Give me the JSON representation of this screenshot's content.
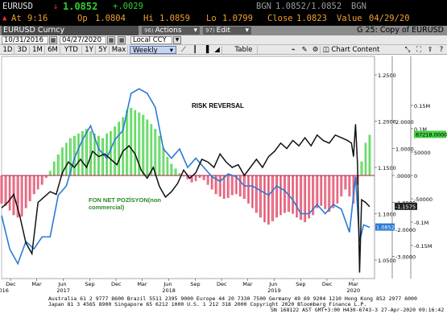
{
  "quote": {
    "ticker": "EURUSD",
    "last": "1.0852",
    "change": "+.0029",
    "bgn_label": "BGN",
    "bid_ask": "1.0852/1.0852",
    "bgn_label2": "BGN",
    "at_label": "At",
    "time": "9:16",
    "op_label": "Op",
    "open": "1.0804",
    "hi_label": "Hi",
    "high": "1.0859",
    "lo_label": "Lo",
    "low": "1.0799",
    "close_label": "Close",
    "close": "1.0823",
    "value_label": "Value",
    "value_date": "04/29/20"
  },
  "titlebar": {
    "security": "EURUSD Curncy",
    "actions_num": "96)",
    "actions": "Actions",
    "edit_num": "97)",
    "edit": "Edit",
    "chart_title": "G 25: Copy of EURUSD"
  },
  "daterow": {
    "start_date": "10/31/2016",
    "end_date": "04/27/2020",
    "currency": "Local CCY"
  },
  "toolbar": {
    "periods": [
      "1D",
      "3D",
      "1M",
      "6M",
      "YTD",
      "1Y",
      "5Y",
      "Max"
    ],
    "frequency": "Weekly",
    "table": "Table",
    "chart_content": "Chart Content"
  },
  "chart_data": {
    "type": "line",
    "annotations": {
      "risk_reversal": "RISK REVERSAL",
      "fon_net_line1": "FON NET POZİSYON(non",
      "fon_net_line2": "commercial)"
    },
    "x_ticks": [
      "Dec",
      "Mar",
      "Jun",
      "Sep",
      "Dec",
      "Mar",
      "Jun",
      "Sep",
      "Dec",
      "Mar",
      "Jun",
      "Sep",
      "Dec",
      "Mar"
    ],
    "x_years": [
      "2016",
      "2017",
      "2018",
      "2019",
      "2020"
    ],
    "left_axis": {
      "ticks": [
        "1.2500",
        "1.2000",
        "1.1500",
        "1.1000",
        "1.0500"
      ],
      "ylim": [
        1.03,
        1.27
      ]
    },
    "right_outer_axis": {
      "ticks": [
        "0.15M",
        "0.1M",
        "50000",
        "0",
        "-50000",
        "-0.1M",
        "-0.15M"
      ]
    },
    "right_inner_axis": {
      "ticks": [
        "2.0000",
        "1.0000",
        ".0000",
        "-1.0000",
        "-2.0000",
        "-3.0000"
      ]
    },
    "labels": {
      "eurusd_last": "1.0852",
      "risk_rev_last": "-1.1575",
      "netpos_last": "87218.0000"
    },
    "series": [
      {
        "name": "EURUSD",
        "color": "#2a7ad4",
        "x": [
          "2016-10-31",
          "2016-11-28",
          "2016-12-26",
          "2017-01-23",
          "2017-02-20",
          "2017-03-20",
          "2017-04-17",
          "2017-05-15",
          "2017-06-12",
          "2017-07-10",
          "2017-08-07",
          "2017-09-04",
          "2017-10-02",
          "2017-10-30",
          "2017-11-27",
          "2017-12-25",
          "2018-01-22",
          "2018-02-19",
          "2018-03-19",
          "2018-04-16",
          "2018-05-14",
          "2018-06-11",
          "2018-07-09",
          "2018-08-06",
          "2018-09-03",
          "2018-10-01",
          "2018-10-29",
          "2018-11-26",
          "2018-12-24",
          "2019-01-21",
          "2019-02-18",
          "2019-03-18",
          "2019-04-15",
          "2019-05-13",
          "2019-06-10",
          "2019-07-08",
          "2019-08-05",
          "2019-09-02",
          "2019-09-30",
          "2019-10-28",
          "2019-11-25",
          "2019-12-23",
          "2020-01-20",
          "2020-02-17",
          "2020-03-09",
          "2020-03-23",
          "2020-04-06",
          "2020-04-27"
        ],
        "y": [
          1.098,
          1.062,
          1.046,
          1.07,
          1.062,
          1.075,
          1.075,
          1.12,
          1.13,
          1.16,
          1.18,
          1.195,
          1.17,
          1.16,
          1.18,
          1.19,
          1.23,
          1.235,
          1.23,
          1.215,
          1.17,
          1.16,
          1.17,
          1.15,
          1.16,
          1.15,
          1.14,
          1.135,
          1.143,
          1.14,
          1.13,
          1.13,
          1.125,
          1.12,
          1.13,
          1.125,
          1.115,
          1.1,
          1.1,
          1.11,
          1.1,
          1.11,
          1.105,
          1.08,
          1.14,
          1.07,
          1.088,
          1.0852
        ]
      },
      {
        "name": "RISK REVERSAL",
        "color": "#111111",
        "x": [
          "2016-10-31",
          "2016-11-21",
          "2016-12-12",
          "2017-01-02",
          "2017-01-23",
          "2017-02-13",
          "2017-03-06",
          "2017-03-27",
          "2017-04-17",
          "2017-05-08",
          "2017-05-29",
          "2017-06-19",
          "2017-07-10",
          "2017-07-31",
          "2017-08-21",
          "2017-09-11",
          "2017-10-02",
          "2017-10-23",
          "2017-11-13",
          "2017-12-04",
          "2017-12-25",
          "2018-01-15",
          "2018-02-05",
          "2018-02-26",
          "2018-03-19",
          "2018-04-09",
          "2018-04-30",
          "2018-05-21",
          "2018-06-11",
          "2018-07-02",
          "2018-07-23",
          "2018-08-13",
          "2018-09-03",
          "2018-09-24",
          "2018-10-15",
          "2018-11-05",
          "2018-11-26",
          "2018-12-17",
          "2019-01-07",
          "2019-01-28",
          "2019-02-18",
          "2019-03-11",
          "2019-04-01",
          "2019-04-22",
          "2019-05-13",
          "2019-06-03",
          "2019-06-24",
          "2019-07-15",
          "2019-08-05",
          "2019-08-26",
          "2019-09-16",
          "2019-10-07",
          "2019-10-28",
          "2019-11-18",
          "2019-12-09",
          "2019-12-30",
          "2020-01-20",
          "2020-02-10",
          "2020-02-24",
          "2020-03-02",
          "2020-03-09",
          "2020-03-16",
          "2020-03-23",
          "2020-03-30",
          "2020-04-13",
          "2020-04-27"
        ],
        "y": [
          -1.2,
          -1.0,
          -0.7,
          -1.5,
          -2.5,
          -2.9,
          -1.0,
          -0.8,
          -0.6,
          -0.7,
          0.1,
          0.5,
          0.3,
          0.6,
          0.3,
          0.9,
          0.7,
          0.8,
          0.6,
          0.4,
          0.9,
          1.1,
          0.8,
          0.2,
          -0.1,
          0.3,
          -0.4,
          -0.8,
          -0.6,
          -0.3,
          0.2,
          -0.1,
          0.1,
          0.6,
          0.5,
          0.3,
          0.8,
          0.5,
          0.3,
          0.4,
          0.0,
          0.3,
          0.6,
          0.3,
          0.7,
          0.9,
          1.2,
          1.0,
          1.3,
          1.1,
          1.4,
          1.1,
          1.5,
          1.3,
          1.2,
          1.5,
          1.4,
          1.3,
          1.2,
          0.7,
          1.9,
          0.4,
          -3.6,
          -0.9,
          -1.0,
          -1.1575
        ]
      },
      {
        "name": "FON NET POZİSYON(non commercial)",
        "style": "bars",
        "color_pos": "#44d044",
        "color_neg": "#e04060",
        "x": [
          "2016-10-31",
          "2016-11-14",
          "2016-11-28",
          "2016-12-12",
          "2016-12-26",
          "2017-01-09",
          "2017-01-23",
          "2017-02-06",
          "2017-02-20",
          "2017-03-06",
          "2017-03-20",
          "2017-04-03",
          "2017-04-17",
          "2017-05-01",
          "2017-05-15",
          "2017-05-29",
          "2017-06-12",
          "2017-06-26",
          "2017-07-10",
          "2017-07-24",
          "2017-08-07",
          "2017-08-21",
          "2017-09-04",
          "2017-09-18",
          "2017-10-02",
          "2017-10-16",
          "2017-10-30",
          "2017-11-13",
          "2017-11-27",
          "2017-12-11",
          "2017-12-25",
          "2018-01-08",
          "2018-01-22",
          "2018-02-05",
          "2018-02-19",
          "2018-03-05",
          "2018-03-19",
          "2018-04-02",
          "2018-04-16",
          "2018-04-30",
          "2018-05-14",
          "2018-05-28",
          "2018-06-11",
          "2018-06-25",
          "2018-07-09",
          "2018-07-23",
          "2018-08-06",
          "2018-08-20",
          "2018-09-03",
          "2018-09-17",
          "2018-10-01",
          "2018-10-15",
          "2018-10-29",
          "2018-11-12",
          "2018-11-26",
          "2018-12-10",
          "2018-12-24",
          "2019-01-07",
          "2019-01-21",
          "2019-02-04",
          "2019-02-18",
          "2019-03-04",
          "2019-03-18",
          "2019-04-01",
          "2019-04-15",
          "2019-04-29",
          "2019-05-13",
          "2019-05-27",
          "2019-06-10",
          "2019-06-24",
          "2019-07-08",
          "2019-07-22",
          "2019-08-05",
          "2019-08-19",
          "2019-09-02",
          "2019-09-16",
          "2019-09-30",
          "2019-10-14",
          "2019-10-28",
          "2019-11-11",
          "2019-11-25",
          "2019-12-09",
          "2019-12-23",
          "2020-01-06",
          "2020-01-20",
          "2020-02-03",
          "2020-02-17",
          "2020-03-02",
          "2020-03-16",
          "2020-03-30",
          "2020-04-13",
          "2020-04-27"
        ],
        "y": [
          -60000,
          -65000,
          -75000,
          -85000,
          -90000,
          -88000,
          -70000,
          -55000,
          -40000,
          -30000,
          -20000,
          -5000,
          10000,
          30000,
          45000,
          60000,
          70000,
          80000,
          85000,
          90000,
          95000,
          100000,
          95000,
          90000,
          85000,
          80000,
          90000,
          95000,
          105000,
          115000,
          125000,
          140000,
          145000,
          140000,
          135000,
          130000,
          120000,
          110000,
          100000,
          85000,
          60000,
          40000,
          25000,
          15000,
          5000,
          -2000,
          -8000,
          -15000,
          -12000,
          -5000,
          -10000,
          -20000,
          -30000,
          -40000,
          -45000,
          -50000,
          -48000,
          -42000,
          -40000,
          -45000,
          -50000,
          -60000,
          -70000,
          -80000,
          -90000,
          -100000,
          -105000,
          -98000,
          -90000,
          -85000,
          -80000,
          -78000,
          -82000,
          -90000,
          -95000,
          -100000,
          -92000,
          -85000,
          -70000,
          -65000,
          -72000,
          -78000,
          -70000,
          -60000,
          -45000,
          -30000,
          -45000,
          -60000,
          -20000,
          30000,
          70000,
          87218
        ]
      }
    ]
  },
  "footer": {
    "line1": "Australia 61 2 9777 8600 Brazil 5511 2395 9000 Europe 44 20 7330 7500 Germany 49 69 9204 1210 Hong Kong 852 2977 6000",
    "line2": "Japan 81 3 4565 8900           Singapore 65 6212 1000       U.S. 1 212 318 2000           Copyright 2020 Bloomberg Finance L.P.",
    "line3": "SN 168122 AST  GMT+3:00 H430-6743-3 27-Apr-2020 09:16:42"
  }
}
